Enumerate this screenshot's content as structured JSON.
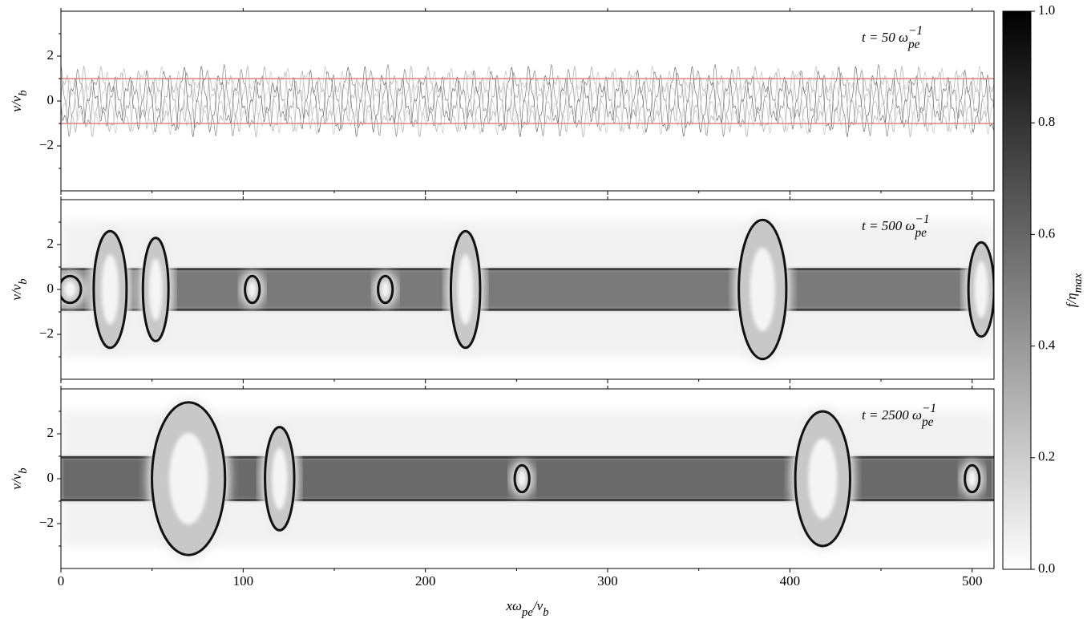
{
  "chart_data": [
    {
      "type": "heatmap",
      "annotation": [
        {
          "text": "t = 50 ω"
        },
        {
          "sub": "pe"
        },
        {
          "sup": "−1"
        }
      ],
      "ylabel": [
        {
          "text": "v/v"
        },
        {
          "sub": "b"
        }
      ],
      "xlim": [
        0,
        512
      ],
      "xticks": [
        0,
        100,
        200,
        300,
        400,
        500
      ],
      "xminor": [
        50,
        150,
        250,
        350,
        450
      ],
      "ylim": [
        -4,
        4
      ],
      "yticks": [
        {
          "value": -2,
          "label": "−2"
        },
        0,
        2
      ],
      "yminor": [
        -3,
        -1,
        1,
        3
      ],
      "hlines": [
        1,
        -1
      ],
      "hline_color": "#e08080"
    },
    {
      "type": "heatmap",
      "annotation": [
        {
          "text": "t = 500 ω"
        },
        {
          "sub": "pe"
        },
        {
          "sup": "−1"
        }
      ],
      "ylabel": [
        {
          "text": "v/v"
        },
        {
          "sub": "b"
        }
      ],
      "xlim": [
        0,
        512
      ],
      "xticks": [
        0,
        100,
        200,
        300,
        400,
        500
      ],
      "xminor": [
        50,
        150,
        250,
        350,
        450
      ],
      "ylim": [
        -4,
        4
      ],
      "yticks": [
        {
          "value": -2,
          "label": "−2"
        },
        0,
        2
      ],
      "yminor": [
        -3,
        -1,
        1,
        3
      ]
    },
    {
      "type": "heatmap",
      "annotation": [
        {
          "text": "t = 2500 ω"
        },
        {
          "sub": "pe"
        },
        {
          "sup": "−1"
        }
      ],
      "ylabel": [
        {
          "text": "v/v"
        },
        {
          "sub": "b"
        }
      ],
      "xlabel": [
        {
          "text": "xω"
        },
        {
          "sub": "pe"
        },
        {
          "text": "/v"
        },
        {
          "sub": "b"
        }
      ],
      "xlim": [
        0,
        512
      ],
      "xticks": [
        0,
        100,
        200,
        300,
        400,
        500
      ],
      "xminor": [
        50,
        150,
        250,
        350,
        450
      ],
      "ylim": [
        -4,
        4
      ],
      "yticks": [
        {
          "value": -2,
          "label": "−2"
        },
        0,
        2
      ],
      "yminor": [
        -3,
        -1,
        1,
        3
      ]
    }
  ],
  "colorbar": {
    "label": [
      {
        "text": "f/η"
      },
      {
        "sub": "max"
      }
    ],
    "lim": [
      0,
      1
    ],
    "ticks": [
      {
        "value": 0,
        "label": "0.0"
      },
      {
        "value": 0.2,
        "label": "0.2"
      },
      {
        "value": 0.4,
        "label": "0.4"
      },
      {
        "value": 0.6,
        "label": "0.6"
      },
      {
        "value": 0.8,
        "label": "0.8"
      },
      {
        "value": 1,
        "label": "1.0"
      }
    ]
  }
}
